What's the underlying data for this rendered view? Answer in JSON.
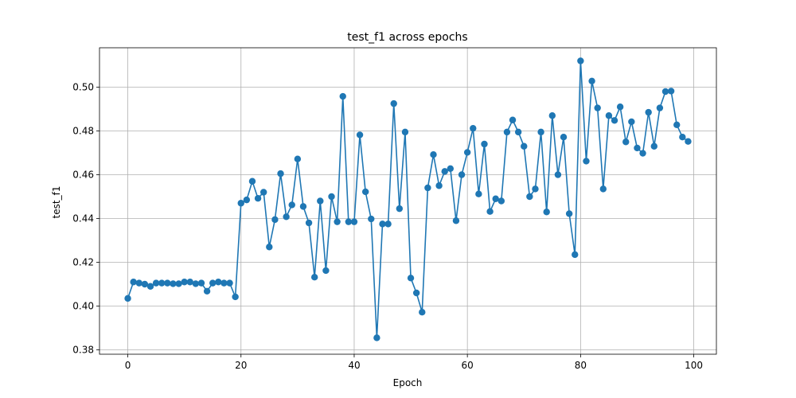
{
  "chart_data": {
    "type": "line",
    "title": "test_f1 across epochs",
    "xlabel": "Epoch",
    "ylabel": "test_f1",
    "xlim": [
      -5,
      104
    ],
    "ylim": [
      0.378,
      0.518
    ],
    "xticks": [
      "0",
      "20",
      "40",
      "60",
      "80",
      "100"
    ],
    "yticks": [
      "0.38",
      "0.40",
      "0.42",
      "0.44",
      "0.46",
      "0.48",
      "0.50"
    ],
    "grid": true,
    "marker": "circle",
    "color": "#1f77b4",
    "series": [
      {
        "x": [
          0,
          1,
          2,
          3,
          4,
          5,
          6,
          7,
          8,
          9,
          10,
          11,
          12,
          13,
          14,
          15,
          16,
          17,
          18,
          19,
          20,
          21,
          22,
          23,
          24,
          25,
          26,
          27,
          28,
          29,
          30,
          31,
          32,
          33,
          34,
          35,
          36,
          37,
          38,
          39,
          40,
          41,
          42,
          43,
          44,
          45,
          46,
          47,
          48,
          49,
          50,
          51,
          52,
          53,
          54,
          55,
          56,
          57,
          58,
          59,
          60,
          61,
          62,
          63,
          64,
          65,
          66,
          67,
          68,
          69,
          70,
          71,
          72,
          73,
          74,
          75,
          76,
          77,
          78,
          79,
          80,
          81,
          82,
          83,
          84,
          85,
          86,
          87,
          88,
          89,
          90,
          91,
          92,
          93,
          94,
          95,
          96,
          97,
          98,
          99
        ],
        "values": [
          0.4035,
          0.411,
          0.4105,
          0.41,
          0.409,
          0.4105,
          0.4105,
          0.4105,
          0.4102,
          0.4102,
          0.411,
          0.411,
          0.4102,
          0.4105,
          0.4068,
          0.4105,
          0.411,
          0.4105,
          0.4105,
          0.4042,
          0.447,
          0.4485,
          0.457,
          0.4492,
          0.452,
          0.427,
          0.4395,
          0.4605,
          0.4408,
          0.4462,
          0.4672,
          0.4455,
          0.438,
          0.4132,
          0.448,
          0.4162,
          0.45,
          0.4385,
          0.4958,
          0.4385,
          0.4385,
          0.4782,
          0.4522,
          0.4398,
          0.3855,
          0.4375,
          0.4375,
          0.4925,
          0.4445,
          0.4795,
          0.4128,
          0.406,
          0.3972,
          0.454,
          0.4692,
          0.455,
          0.4615,
          0.4628,
          0.439,
          0.46,
          0.4702,
          0.4812,
          0.4512,
          0.474,
          0.4432,
          0.449,
          0.448,
          0.4795,
          0.485,
          0.4795,
          0.473,
          0.45,
          0.4535,
          0.4795,
          0.443,
          0.487,
          0.46,
          0.4772,
          0.4422,
          0.4235,
          0.512,
          0.4662,
          0.5028,
          0.4905,
          0.4535,
          0.487,
          0.4848,
          0.491,
          0.475,
          0.4842,
          0.4722,
          0.4698,
          0.4885,
          0.473,
          0.4905,
          0.498,
          0.4982,
          0.4828,
          0.4772,
          0.4752
        ]
      }
    ]
  }
}
